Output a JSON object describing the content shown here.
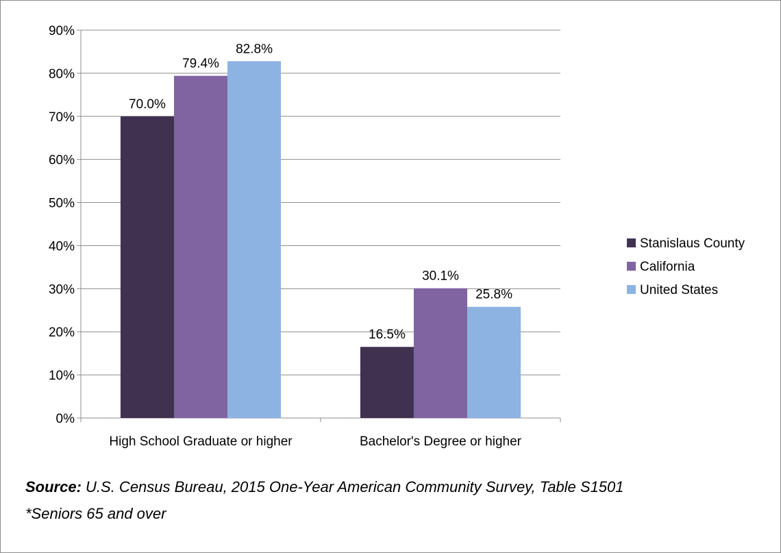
{
  "chart_data": {
    "type": "bar",
    "categories": [
      "High School Graduate or higher",
      "Bachelor's Degree or higher"
    ],
    "series": [
      {
        "name": "Stanislaus County",
        "values": [
          70.0,
          16.5
        ],
        "labels": [
          "70.0%",
          "16.5%"
        ],
        "color": "#403151"
      },
      {
        "name": "California",
        "values": [
          79.4,
          30.1
        ],
        "labels": [
          "79.4%",
          "30.1%"
        ],
        "color": "#8064a2"
      },
      {
        "name": "United States",
        "values": [
          82.8,
          25.8
        ],
        "labels": [
          "82.8%",
          "25.8%"
        ],
        "color": "#8db3e2"
      }
    ],
    "ylim": [
      0,
      90
    ],
    "yticks": [
      0,
      10,
      20,
      30,
      40,
      50,
      60,
      70,
      80,
      90
    ],
    "ytick_labels": [
      "0%",
      "10%",
      "20%",
      "30%",
      "40%",
      "50%",
      "60%",
      "70%",
      "80%",
      "90%"
    ],
    "grid": true,
    "legend_position": "right"
  },
  "footnote": {
    "source_label": "Source:",
    "source_text": " U.S. Census Bureau, 2015 One-Year American Community Survey, Table S1501",
    "note": "*Seniors 65 and over"
  }
}
